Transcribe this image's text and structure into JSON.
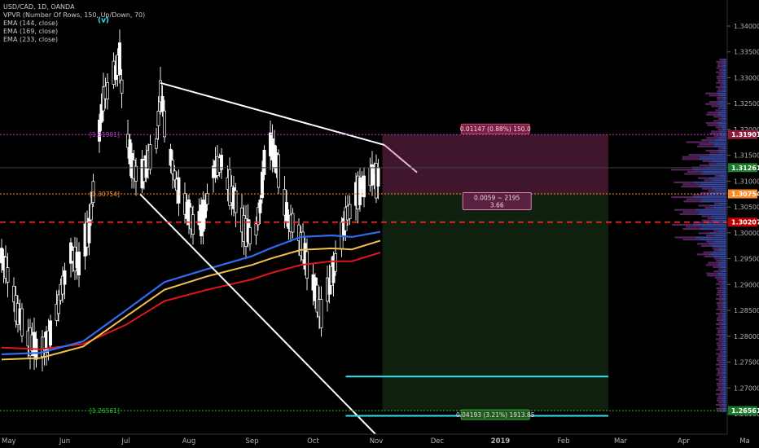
{
  "legend": {
    "symbol": "USD/CAD, 1D, OANDA",
    "indicators": [
      "VPVR (Number Of Rows, 150, Up/Down, 70)",
      "EMA (144, close)",
      "EMA (169, close)",
      "EMA (233, close)"
    ]
  },
  "colors": {
    "background": "#000000",
    "ema144": "#2f6cf0",
    "ema169": "#f2c14e",
    "ema233": "#e0161c",
    "trendline": "#ffffff",
    "stop_zone": "#4a1a33",
    "target_zone": "#10220f",
    "entry_line": "#ff8a24",
    "stop_line": "#c036c8",
    "target_line": "#1ecb1e",
    "support_line": "#ff2a2a",
    "cyan_level": "#35e0ee",
    "badge_last": "#1b7a2c",
    "badge_entry": "#ff8a24",
    "badge_stop": "#8e1e3e",
    "badge_support": "#c00000",
    "badge_target": "#1b7a2c"
  },
  "chart_data": {
    "type": "candlestick",
    "symbol": "USD/CAD",
    "timeframe": "1D",
    "source": "OANDA",
    "x_axis": {
      "tick_labels": [
        "May",
        "Jun",
        "Jul",
        "Aug",
        "Sep",
        "Oct",
        "Nov",
        "Dec",
        "2019",
        "Feb",
        "Mar",
        "Apr",
        "Ma"
      ],
      "tick_dates": [
        "2018-05-01",
        "2018-06-01",
        "2018-07-01",
        "2018-08-01",
        "2018-09-01",
        "2018-10-01",
        "2018-11-01",
        "2018-12-01",
        "2019-01-01",
        "2019-02-01",
        "2019-03-01",
        "2019-04-01",
        "2019-05-01"
      ],
      "range": [
        "2018-05-01",
        "2019-05-04"
      ]
    },
    "y_axis": {
      "tick_labels": [
        "1.34000",
        "1.33500",
        "1.33000",
        "1.32500",
        "1.32000",
        "1.31500",
        "1.31000",
        "1.30500",
        "1.30000",
        "1.29500",
        "1.29000",
        "1.28500",
        "1.28000",
        "1.27500",
        "1.27000",
        "1.26500"
      ],
      "range": [
        1.2605,
        1.3435
      ]
    },
    "ema_144": [
      [
        "2018-05-01",
        1.2765
      ],
      [
        "2018-05-20",
        1.2768
      ],
      [
        "2018-06-10",
        1.279
      ],
      [
        "2018-07-01",
        1.285
      ],
      [
        "2018-07-20",
        1.2905
      ],
      [
        "2018-08-10",
        1.293
      ],
      [
        "2018-09-01",
        1.2955
      ],
      [
        "2018-09-10",
        1.297
      ],
      [
        "2018-09-25",
        1.2992
      ],
      [
        "2018-10-10",
        1.2995
      ],
      [
        "2018-10-20",
        1.2992
      ],
      [
        "2018-11-03",
        1.3002
      ]
    ],
    "ema_169": [
      [
        "2018-05-01",
        1.2755
      ],
      [
        "2018-05-20",
        1.2758
      ],
      [
        "2018-06-10",
        1.278
      ],
      [
        "2018-07-01",
        1.2838
      ],
      [
        "2018-07-20",
        1.289
      ],
      [
        "2018-08-10",
        1.2916
      ],
      [
        "2018-09-01",
        1.2938
      ],
      [
        "2018-09-10",
        1.295
      ],
      [
        "2018-09-25",
        1.2967
      ],
      [
        "2018-10-10",
        1.297
      ],
      [
        "2018-10-20",
        1.2968
      ],
      [
        "2018-11-03",
        1.2985
      ]
    ],
    "ema_233": [
      [
        "2018-05-01",
        1.2778
      ],
      [
        "2018-05-20",
        1.2775
      ],
      [
        "2018-06-10",
        1.2785
      ],
      [
        "2018-07-01",
        1.2822
      ],
      [
        "2018-07-20",
        1.2868
      ],
      [
        "2018-08-10",
        1.289
      ],
      [
        "2018-09-01",
        1.291
      ],
      [
        "2018-09-10",
        1.2922
      ],
      [
        "2018-09-25",
        1.2938
      ],
      [
        "2018-10-10",
        1.2945
      ],
      [
        "2018-10-20",
        1.2945
      ],
      [
        "2018-11-03",
        1.2962
      ]
    ],
    "trendlines": [
      {
        "from": [
          "2018-07-18",
          1.329
        ],
        "to": [
          "2018-11-05",
          1.317
        ],
        "extended_to": [
          "2018-11-21",
          1.3117
        ]
      },
      {
        "from": [
          "2018-07-08",
          1.3075
        ],
        "to": [
          "2018-11-07",
          1.2585
        ]
      }
    ],
    "short_position": {
      "start": "2018-11-04",
      "end": "2019-02-23",
      "entry": 1.30754,
      "stop": 1.31901,
      "target": 1.26561,
      "stop_label": "0.01147 (0.88%) 150.0",
      "entry_label_1": "0.0059 ~ 2195",
      "entry_label_2": "3.66",
      "target_label": "0.04193 (3.21%) 1913.85",
      "stop_level_text": "1.31901",
      "entry_level_text": "1.30754",
      "target_level_text": "1.26561"
    },
    "horizontal_levels": [
      {
        "name": "support",
        "value": 1.30207,
        "style": "dashed"
      },
      {
        "name": "cyan-level-1",
        "value": 1.2722,
        "from": "2018-10-17",
        "to": "2019-02-23"
      },
      {
        "name": "cyan-level-2",
        "value": 1.2646,
        "from": "2018-10-17",
        "to": "2019-02-23"
      }
    ],
    "price_badges": [
      {
        "value": "1.31901",
        "kind": "stop"
      },
      {
        "value": "1.31261",
        "kind": "last"
      },
      {
        "value": "1.30754",
        "kind": "entry"
      },
      {
        "value": "1.30207",
        "kind": "support"
      },
      {
        "value": "1.26561",
        "kind": "target"
      }
    ],
    "last_price": 1.31261,
    "annotation": "(v)",
    "annotation_point": [
      "2018-06-20",
      1.3407
    ],
    "candle_anchors": [
      [
        "2018-05-01",
        1.2955
      ],
      [
        "2018-05-05",
        1.2905
      ],
      [
        "2018-05-10",
        1.2835
      ],
      [
        "2018-05-15",
        1.279
      ],
      [
        "2018-05-20",
        1.2775
      ],
      [
        "2018-05-25",
        1.28
      ],
      [
        "2018-05-30",
        1.288
      ],
      [
        "2018-06-04",
        1.296
      ],
      [
        "2018-06-08",
        1.2945
      ],
      [
        "2018-06-13",
        1.3005
      ],
      [
        "2018-06-17",
        1.316
      ],
      [
        "2018-06-20",
        1.326
      ],
      [
        "2018-06-24",
        1.33
      ],
      [
        "2018-06-28",
        1.333
      ],
      [
        "2018-07-01",
        1.32
      ],
      [
        "2018-07-04",
        1.313
      ],
      [
        "2018-07-08",
        1.31
      ],
      [
        "2018-07-12",
        1.314
      ],
      [
        "2018-07-16",
        1.317
      ],
      [
        "2018-07-18",
        1.3275
      ],
      [
        "2018-07-22",
        1.316
      ],
      [
        "2018-07-26",
        1.3095
      ],
      [
        "2018-07-31",
        1.304
      ],
      [
        "2018-08-04",
        1.3015
      ],
      [
        "2018-08-09",
        1.3045
      ],
      [
        "2018-08-13",
        1.312
      ],
      [
        "2018-08-17",
        1.314
      ],
      [
        "2018-08-21",
        1.3085
      ],
      [
        "2018-08-25",
        1.305
      ],
      [
        "2018-08-29",
        1.3
      ],
      [
        "2018-09-02",
        1.2985
      ],
      [
        "2018-09-05",
        1.305
      ],
      [
        "2018-09-08",
        1.3175
      ],
      [
        "2018-09-11",
        1.316
      ],
      [
        "2018-09-15",
        1.311
      ],
      [
        "2018-09-19",
        1.3025
      ],
      [
        "2018-09-23",
        1.301
      ],
      [
        "2018-09-27",
        1.295
      ],
      [
        "2018-10-01",
        1.29
      ],
      [
        "2018-10-05",
        1.284
      ],
      [
        "2018-10-09",
        1.29
      ],
      [
        "2018-10-13",
        1.2955
      ],
      [
        "2018-10-17",
        1.303
      ],
      [
        "2018-10-21",
        1.306
      ],
      [
        "2018-10-25",
        1.3095
      ],
      [
        "2018-10-29",
        1.311
      ],
      [
        "2018-11-01",
        1.31
      ],
      [
        "2018-11-04",
        1.3126
      ]
    ]
  }
}
